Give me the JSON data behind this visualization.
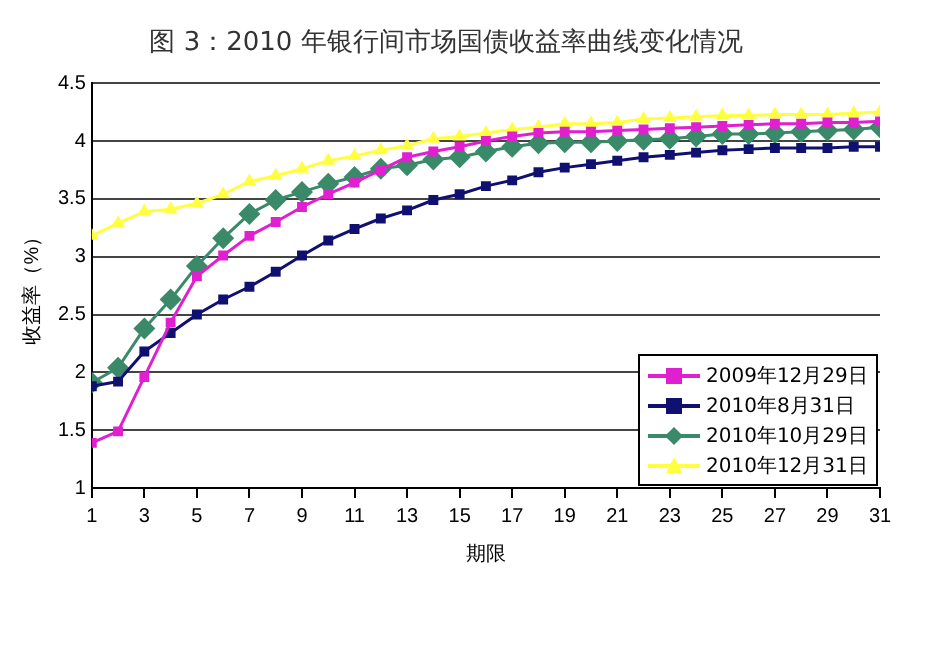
{
  "chart_data": {
    "type": "line",
    "title": "图 3：2010 年银行间市场国债收益率曲线变化情况",
    "xlabel": "期限",
    "ylabel": "收益率（%）",
    "x": [
      1,
      2,
      3,
      4,
      5,
      6,
      7,
      8,
      9,
      10,
      11,
      12,
      13,
      14,
      15,
      16,
      17,
      18,
      19,
      20,
      21,
      22,
      23,
      24,
      25,
      26,
      27,
      28,
      29,
      30,
      31
    ],
    "xlim": [
      1,
      31
    ],
    "xticks": [
      1,
      3,
      5,
      7,
      9,
      11,
      13,
      15,
      17,
      19,
      21,
      23,
      25,
      27,
      29,
      31
    ],
    "series": [
      {
        "name": "2009年12月29日",
        "color": "#e020d0",
        "marker": "square",
        "values": [
          1.39,
          1.49,
          1.96,
          2.43,
          2.83,
          3.01,
          3.18,
          3.3,
          3.43,
          3.54,
          3.64,
          3.75,
          3.86,
          3.91,
          3.95,
          4.0,
          4.04,
          4.07,
          4.08,
          4.08,
          4.09,
          4.1,
          4.11,
          4.12,
          4.13,
          4.14,
          4.15,
          4.15,
          4.16,
          4.16,
          4.17
        ]
      },
      {
        "name": "2010年8月31日",
        "color": "#101070",
        "marker": "square",
        "values": [
          1.88,
          1.92,
          2.18,
          2.34,
          2.5,
          2.63,
          2.74,
          2.87,
          3.01,
          3.14,
          3.24,
          3.33,
          3.4,
          3.49,
          3.54,
          3.61,
          3.66,
          3.73,
          3.77,
          3.8,
          3.83,
          3.86,
          3.88,
          3.9,
          3.92,
          3.93,
          3.94,
          3.94,
          3.94,
          3.95,
          3.95
        ]
      },
      {
        "name": "2010年10月29日",
        "color": "#3a8a6a",
        "marker": "diamond",
        "values": [
          1.91,
          2.04,
          2.38,
          2.63,
          2.92,
          3.16,
          3.37,
          3.49,
          3.56,
          3.63,
          3.69,
          3.76,
          3.79,
          3.84,
          3.86,
          3.91,
          3.95,
          3.98,
          3.99,
          3.99,
          4.0,
          4.01,
          4.02,
          4.04,
          4.06,
          4.06,
          4.07,
          4.08,
          4.09,
          4.1,
          4.12
        ]
      },
      {
        "name": "2010年12月31日",
        "color": "#ffff40",
        "marker": "triangle",
        "values": [
          3.18,
          3.29,
          3.39,
          3.41,
          3.46,
          3.54,
          3.65,
          3.7,
          3.76,
          3.83,
          3.87,
          3.92,
          3.96,
          4.02,
          4.04,
          4.07,
          4.1,
          4.12,
          4.15,
          4.15,
          4.16,
          4.19,
          4.2,
          4.21,
          4.22,
          4.22,
          4.23,
          4.23,
          4.23,
          4.24,
          4.25
        ]
      }
    ],
    "ylim": [
      1,
      4.5
    ],
    "yticks": [
      1,
      1.5,
      2,
      2.5,
      3,
      3.5,
      4,
      4.5
    ],
    "grid": "y",
    "legend": "bottom right",
    "line_style": "solid"
  }
}
